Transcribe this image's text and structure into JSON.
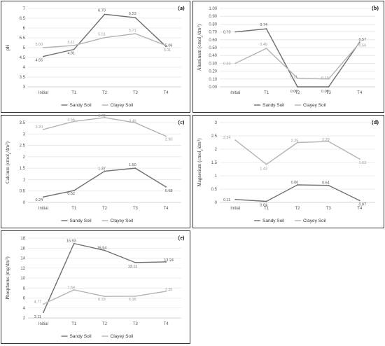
{
  "colors": {
    "sandy": "#6e6e6e",
    "clayey": "#b4b4b4",
    "grid": "#e4e4e4",
    "axis": "#c8c8c8"
  },
  "legend": [
    "Sandy Soil",
    "Clayey Soil"
  ],
  "chart_data": [
    {
      "id": "a",
      "tag": "(a)",
      "type": "line",
      "categories": [
        "Initial",
        "T1",
        "T2",
        "T3",
        "T4"
      ],
      "ylabel": "pH",
      "ylim": [
        3,
        7
      ],
      "ystep": 0.5,
      "ydecimals": 1,
      "yticks": [
        "3",
        "3.5",
        "4",
        "4.5",
        "5",
        "5.5",
        "6",
        "6.5",
        "7"
      ],
      "series": [
        {
          "name": "Sandy Soil",
          "values": [
            4.55,
            4.91,
            6.7,
            6.53,
            5.06
          ],
          "labels": [
            "4.55",
            "4.91",
            "6.70",
            "6.53",
            "5.06"
          ]
        },
        {
          "name": "Clayey Soil",
          "values": [
            5.0,
            5.11,
            5.51,
            5.71,
            5.11
          ],
          "labels": [
            "5.00",
            "5.11",
            "5.51",
            "5.71",
            "5.11"
          ]
        }
      ],
      "grid": true,
      "legend_position": "bottom"
    },
    {
      "id": "b",
      "tag": "(b)",
      "type": "line",
      "categories": [
        "Initial",
        "T1",
        "T2",
        "T3",
        "T4"
      ],
      "ylabel": "Aluminum (cmolc/dm3)",
      "ylim": [
        0,
        1
      ],
      "ystep": 0.1,
      "ydecimals": 2,
      "yticks": [
        "0.00",
        "0.10",
        "0.20",
        "0.30",
        "0.40",
        "0.50",
        "0.60",
        "0.70",
        "0.80",
        "0.90",
        "1.00"
      ],
      "series": [
        {
          "name": "Sandy Soil",
          "values": [
            0.7,
            0.74,
            0.0,
            0.0,
            0.57
          ],
          "labels": [
            "0.70",
            "0.74",
            "0.00",
            "0.00",
            "0.57"
          ]
        },
        {
          "name": "Clayey Soil",
          "values": [
            0.3,
            0.49,
            0.11,
            0.1,
            0.56
          ],
          "labels": [
            "0.30",
            "0.49",
            "0.11",
            "0.10",
            "0.56"
          ]
        }
      ],
      "grid": true,
      "legend_position": "bottom"
    },
    {
      "id": "c",
      "tag": "(c)",
      "type": "line",
      "categories": [
        "Initial",
        "T1",
        "T2",
        "T3",
        "T4"
      ],
      "ylabel": "Calcium (cmolc/dm3)",
      "ylim": [
        0,
        3.5
      ],
      "ystep": 0.5,
      "ydecimals": 1,
      "yticks": [
        "0",
        "0.5",
        "1",
        "1.5",
        "2",
        "2.5",
        "3",
        "3.5"
      ],
      "series": [
        {
          "name": "Sandy Soil",
          "values": [
            0.24,
            0.52,
            1.37,
            1.5,
            0.68
          ],
          "labels": [
            "0.24",
            "0.52",
            "1.37",
            "1.50",
            "0.68"
          ]
        },
        {
          "name": "Clayey Soil",
          "values": [
            3.2,
            3.55,
            3.72,
            3.49,
            2.9
          ],
          "labels": [
            "3.20",
            "3.55",
            "3.72",
            "3.49",
            "2.90"
          ]
        }
      ],
      "grid": true,
      "legend_position": "bottom"
    },
    {
      "id": "d",
      "tag": "(d)",
      "type": "line",
      "categories": [
        "Initial",
        "T1",
        "T2",
        "T3",
        "T4"
      ],
      "ylabel": "Magnesium (cmolc/dm3)",
      "ylim": [
        0,
        3
      ],
      "ystep": 0.5,
      "ydecimals": 1,
      "yticks": [
        "0",
        "0.5",
        "1",
        "1.5",
        "2",
        "2.5",
        "3"
      ],
      "series": [
        {
          "name": "Sandy Soil",
          "values": [
            0.11,
            0.04,
            0.66,
            0.64,
            0.07
          ],
          "labels": [
            "0.11",
            "0.04",
            "0.66",
            "0.64",
            "0.07"
          ]
        },
        {
          "name": "Clayey Soil",
          "values": [
            2.34,
            1.43,
            2.25,
            2.29,
            1.63
          ],
          "labels": [
            "2.34",
            "1.43",
            "2.25",
            "2.29",
            "1.63"
          ]
        }
      ],
      "grid": true,
      "legend_position": "bottom"
    },
    {
      "id": "e",
      "tag": "(e)",
      "type": "line",
      "categories": [
        "Initial",
        "T1",
        "T2",
        "T3",
        "T4"
      ],
      "ylabel": "Phosphorus (mg/dm3)",
      "ylim": [
        2,
        18
      ],
      "ystep": 2,
      "ydecimals": 0,
      "yticks": [
        "2",
        "4",
        "6",
        "8",
        "10",
        "12",
        "14",
        "16",
        "18"
      ],
      "series": [
        {
          "name": "Sandy Soil",
          "values": [
            3.11,
            16.93,
            15.54,
            13.11,
            13.24
          ],
          "labels": [
            "3.11",
            "16.93",
            "15.54",
            "13.11",
            "13.24"
          ]
        },
        {
          "name": "Clayey Soil",
          "values": [
            4.77,
            7.64,
            6.33,
            6.36,
            7.35
          ],
          "labels": [
            "4.77",
            "7.64",
            "6.33",
            "6.36",
            "7.35"
          ]
        }
      ],
      "grid": true,
      "legend_position": "bottom"
    }
  ]
}
